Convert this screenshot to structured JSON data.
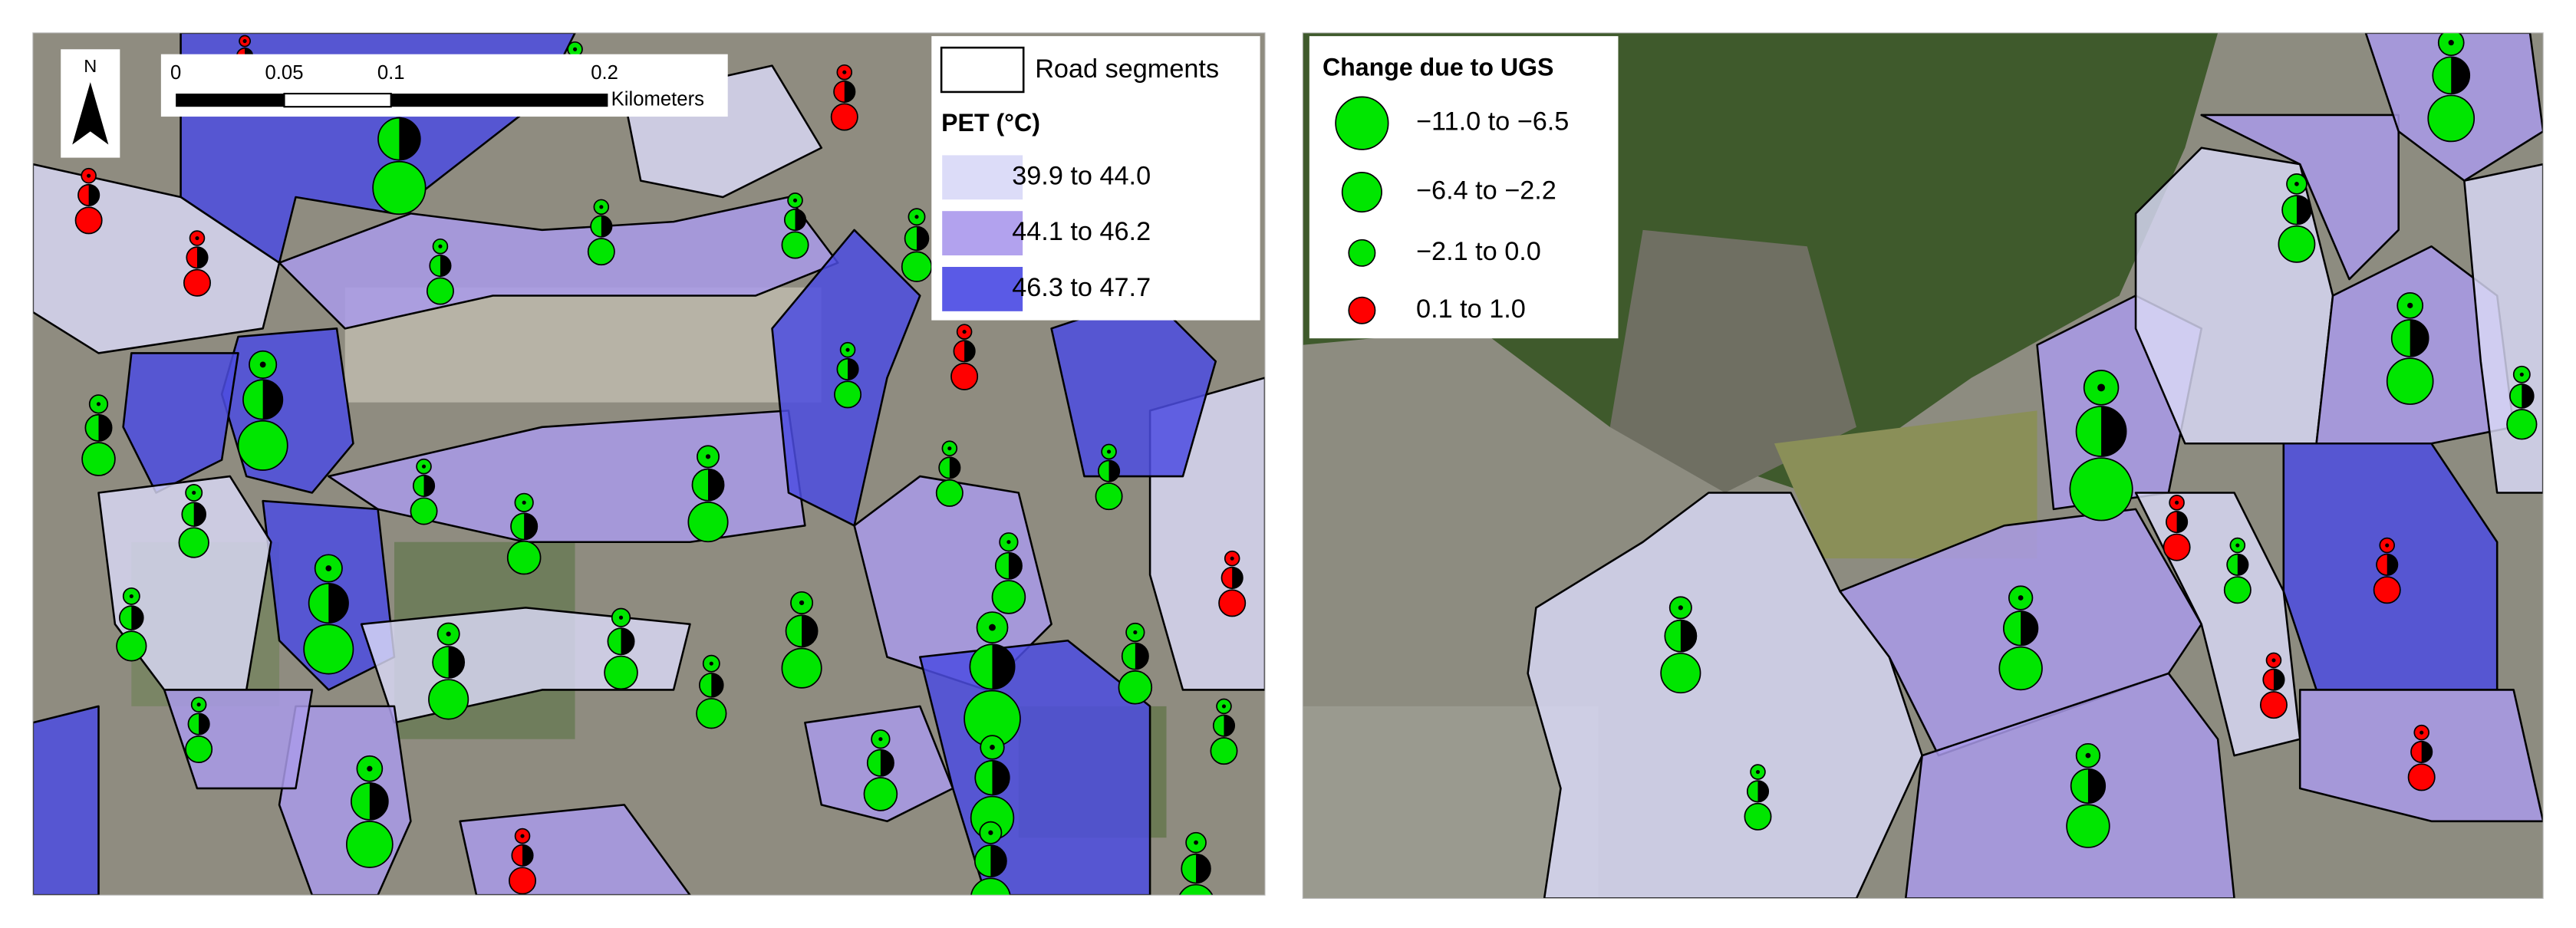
{
  "left_map": {
    "north_arrow": "N",
    "scale_bar": {
      "ticks": [
        "0",
        "0.05",
        "0.1",
        "0.2"
      ],
      "unit": "Kilometers"
    },
    "legend": {
      "road_segments": "Road segments",
      "title": "PET (°C)",
      "classes": [
        {
          "label": "39.9 to 44.0",
          "color": "#dcdcf8"
        },
        {
          "label": "44.1 to 46.2",
          "color": "#b2a2ee"
        },
        {
          "label": "46.3 to 47.7",
          "color": "#5a5ae6"
        }
      ]
    }
  },
  "right_map": {
    "legend": {
      "title": "Change due to UGS",
      "classes": [
        {
          "label": "−11.0 to −6.5",
          "color": "#00e600"
        },
        {
          "label": "−6.4 to −2.2",
          "color": "#00e600"
        },
        {
          "label": "−2.1 to 0.0",
          "color": "#00e600"
        },
        {
          "label": "0.1 to 1.0",
          "color": "#ff0000"
        }
      ]
    }
  }
}
